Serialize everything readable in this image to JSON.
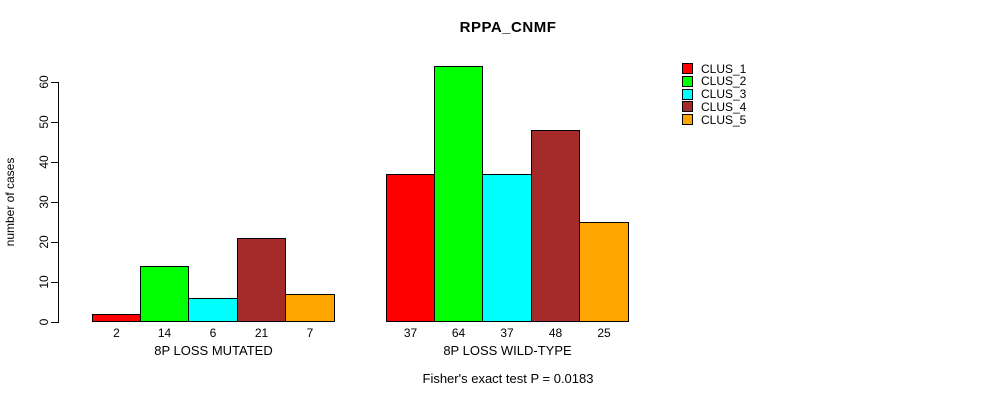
{
  "title": "RPPA_CNMF",
  "y_axis_label": "number of cases",
  "caption": "Fisher's exact test P = 0.0183",
  "chart_data": {
    "type": "bar",
    "title": "RPPA_CNMF",
    "xlabel": "",
    "ylabel": "number of cases",
    "ylim": [
      0,
      65
    ],
    "yticks": [
      0,
      10,
      20,
      30,
      40,
      50,
      60
    ],
    "grid": false,
    "bar_value_labels": true,
    "legend_position": "right-outside",
    "annotation": "Fisher's exact test P = 0.0183",
    "categories": [
      "8P LOSS MUTATED",
      "8P LOSS WILD-TYPE"
    ],
    "series": [
      {
        "name": "CLUS_1",
        "color": "#FF0000",
        "values": [
          2,
          37
        ]
      },
      {
        "name": "CLUS_2",
        "color": "#00FF00",
        "values": [
          14,
          64
        ]
      },
      {
        "name": "CLUS_3",
        "color": "#00FFFF",
        "values": [
          6,
          37
        ]
      },
      {
        "name": "CLUS_4",
        "color": "#A52A2A",
        "values": [
          21,
          48
        ]
      },
      {
        "name": "CLUS_5",
        "color": "#FFA500",
        "values": [
          7,
          25
        ]
      }
    ]
  }
}
